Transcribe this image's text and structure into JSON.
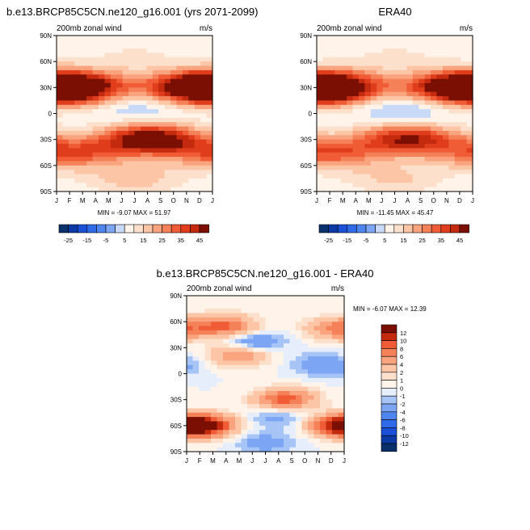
{
  "colors": {
    "blue_scale": [
      "#08306b",
      "#0b3aa6",
      "#1a50d8",
      "#2f6ae8",
      "#4f85ef",
      "#7ca6f4",
      "#a7c4f7",
      "#c9daf8",
      "#e6eefb"
    ],
    "red_scale": [
      "#fff3ea",
      "#fde0cc",
      "#fcc6a6",
      "#f9a47e",
      "#f58159",
      "#ef5c36",
      "#e03d1c",
      "#c42a0e",
      "#a01b06",
      "#7b0f03"
    ]
  },
  "chart_data": [
    {
      "type": "heatmap",
      "title": "b.e13.BRCP85C5CN.ne120_g16.001 (yrs 2071-2099)",
      "subtitle_left": "200mb zonal wind",
      "subtitle_right": "m/s",
      "x": [
        "J",
        "F",
        "M",
        "A",
        "M",
        "J",
        "J",
        "A",
        "S",
        "O",
        "N",
        "D",
        "J"
      ],
      "y": [
        "90N",
        "60N",
        "30N",
        "0",
        "30S",
        "60S",
        "90S"
      ],
      "stats": "MIN =  -9.07 MAX =  51.97",
      "min": -9.07,
      "max": 51.97,
      "colorbar_labels": [
        "-25",
        "-15",
        "-5",
        "5",
        "15",
        "25",
        "35",
        "45"
      ],
      "features": [
        {
          "lat": 30,
          "month": 0.8,
          "value": 45
        },
        {
          "lat": 30,
          "month": 11.5,
          "value": 40
        },
        {
          "lat": 30,
          "month": 6.5,
          "value": 15
        },
        {
          "lat": 5,
          "month": 6.5,
          "value": -8
        },
        {
          "lat": -30,
          "month": 7.2,
          "value": 50
        },
        {
          "lat": -45,
          "month": 1,
          "value": 30
        },
        {
          "lat": 65,
          "month": 6,
          "value": 5
        },
        {
          "lat": -75,
          "month": 6,
          "value": 12
        }
      ]
    },
    {
      "type": "heatmap",
      "title": "ERA40",
      "subtitle_left": "200mb zonal wind",
      "subtitle_right": "m/s",
      "x": [
        "J",
        "F",
        "M",
        "A",
        "M",
        "J",
        "J",
        "A",
        "S",
        "O",
        "N",
        "D",
        "J"
      ],
      "y": [
        "90N",
        "60N",
        "30N",
        "0",
        "30S",
        "60S",
        "90S"
      ],
      "stats": "MIN = -11.45 MAX =  45.47",
      "min": -11.45,
      "max": 45.47,
      "colorbar_labels": [
        "-25",
        "-15",
        "-5",
        "5",
        "15",
        "25",
        "35",
        "45"
      ],
      "features": [
        {
          "lat": 30,
          "month": 0.8,
          "value": 42
        },
        {
          "lat": 30,
          "month": 11.5,
          "value": 38
        },
        {
          "lat": 30,
          "month": 6.5,
          "value": 15
        },
        {
          "lat": 5,
          "month": 6.8,
          "value": -10
        },
        {
          "lat": -30,
          "month": 7.0,
          "value": 40
        },
        {
          "lat": -45,
          "month": 1,
          "value": 28
        },
        {
          "lat": 65,
          "month": 6,
          "value": 5
        },
        {
          "lat": -75,
          "month": 6,
          "value": 10
        }
      ]
    },
    {
      "type": "heatmap",
      "title": "b.e13.BRCP85C5CN.ne120_g16.001 - ERA40",
      "subtitle_left": "200mb zonal wind",
      "subtitle_right": "m/s",
      "x": [
        "J",
        "F",
        "M",
        "A",
        "M",
        "J",
        "J",
        "A",
        "S",
        "O",
        "N",
        "D",
        "J"
      ],
      "y": [
        "90N",
        "60N",
        "30N",
        "0",
        "30S",
        "60S",
        "90S"
      ],
      "stats": "MIN =  -6.07 MAX =  12.39",
      "min": -6.07,
      "max": 12.39,
      "colorbar_labels": [
        "12",
        "10",
        "8",
        "6",
        "4",
        "2",
        "1",
        "0",
        "-1",
        "-2",
        "-4",
        "-6",
        "-8",
        "-10",
        "-12"
      ],
      "features": [
        {
          "lat": 55,
          "month": 3,
          "value": 8
        },
        {
          "lat": 52,
          "month": 11.5,
          "value": 7
        },
        {
          "lat": 35,
          "month": 5,
          "value": -5
        },
        {
          "lat": 22,
          "month": 4,
          "value": 7
        },
        {
          "lat": 10,
          "month": 10.5,
          "value": -4
        },
        {
          "lat": -30,
          "month": 7.5,
          "value": 9
        },
        {
          "lat": -60,
          "month": 1.5,
          "value": 12
        },
        {
          "lat": -60,
          "month": 11.5,
          "value": 10
        },
        {
          "lat": -50,
          "month": 7,
          "value": -3
        },
        {
          "lat": -80,
          "month": 6,
          "value": -3
        }
      ]
    }
  ]
}
